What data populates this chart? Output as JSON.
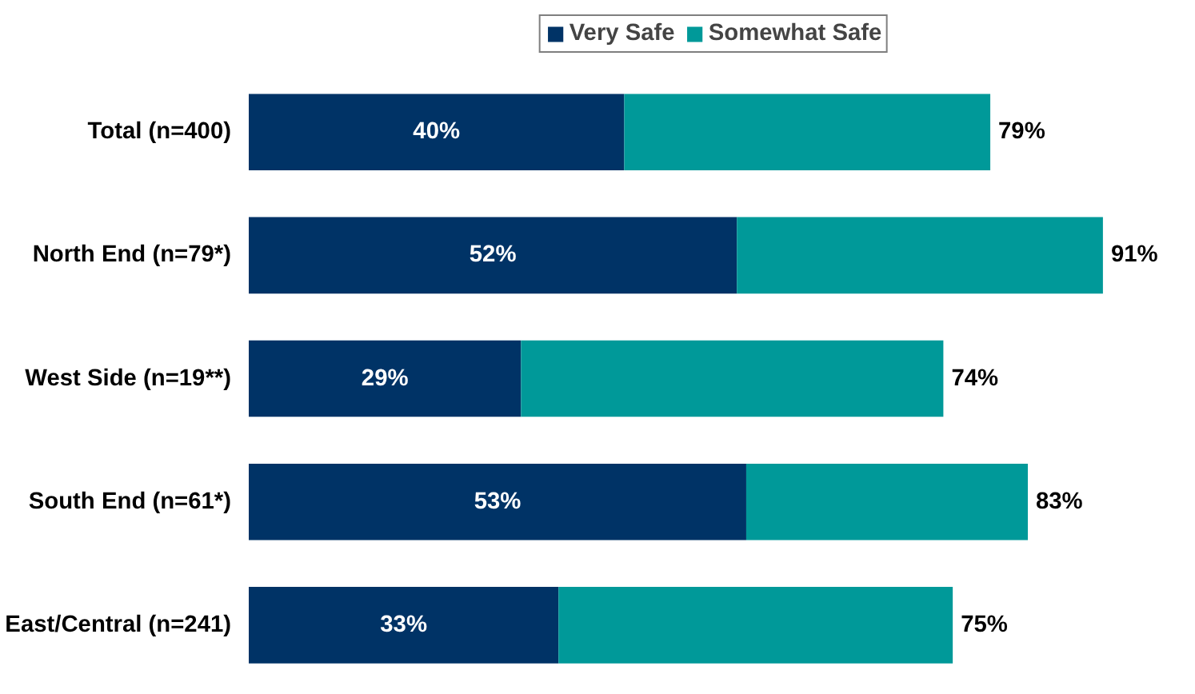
{
  "chart_data": {
    "type": "bar",
    "orientation": "horizontal",
    "stacked": true,
    "categories": [
      "Total (n=400)",
      "North End (n=79*)",
      "West Side (n=19**)",
      "South End (n=61*)",
      "East/Central (n=241)"
    ],
    "series": [
      {
        "name": "Very Safe",
        "color": "#003366",
        "values": [
          40,
          52,
          29,
          53,
          33
        ],
        "value_labels": [
          "40%",
          "52%",
          "29%",
          "53%",
          "33%"
        ]
      },
      {
        "name": "Somewhat Safe",
        "color": "#009999",
        "values": [
          39,
          39,
          45,
          30,
          42
        ]
      }
    ],
    "totals": [
      "79%",
      "91%",
      "74%",
      "83%",
      "75%"
    ],
    "legend": "top",
    "grid": false,
    "tick_labels": "y"
  }
}
